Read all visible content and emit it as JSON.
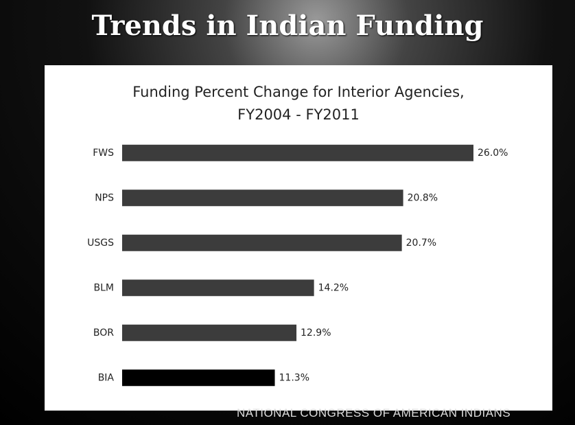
{
  "slide": {
    "title": "Trends in Indian Funding",
    "footer": "NATIONAL CONGRESS OF AMERICAN INDIANS"
  },
  "chart_data": {
    "type": "bar",
    "orientation": "horizontal",
    "title": "Funding  Percent Change for Interior Agencies,\nFY2004 - FY2011",
    "categories": [
      "FWS",
      "NPS",
      "USGS",
      "BLM",
      "BOR",
      "BIA"
    ],
    "values": [
      26.0,
      20.8,
      20.7,
      14.2,
      12.9,
      11.3
    ],
    "value_labels": [
      "26.0%",
      "20.8%",
      "20.7%",
      "14.2%",
      "12.9%",
      "11.3%"
    ],
    "colors": [
      "#3c3c3c",
      "#3c3c3c",
      "#3c3c3c",
      "#3c3c3c",
      "#3c3c3c",
      "#000000"
    ]
  }
}
